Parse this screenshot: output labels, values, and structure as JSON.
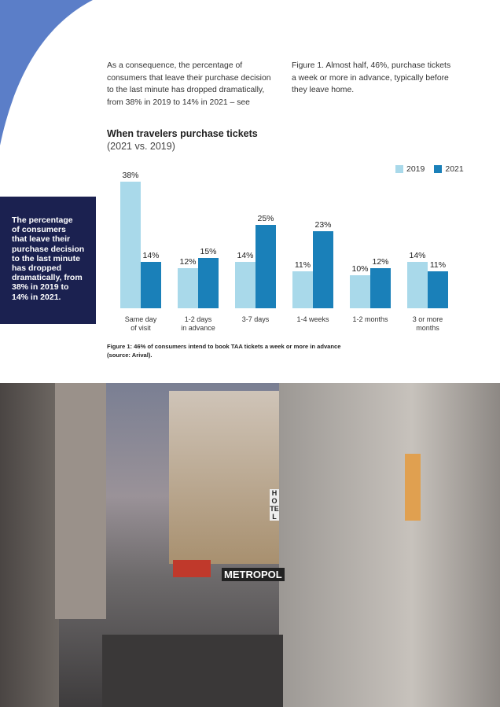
{
  "body": {
    "left_paragraph": "As a consequence, the percentage of\nconsumers that leave their purchase decision\nto  the last minute has dropped dramatically,\nfrom 38% in 2019 to 14% in 2021 – see",
    "right_paragraph": "Figure 1.  Almost half, 46%, purchase tickets\na week or more in advance, typically before\nthey leave home."
  },
  "callout": "The percentage\nof consumers\nthat leave their\npurchase decision\nto  the last minute\nhas dropped\ndramatically, from\n38% in 2019 to\n14% in 2021.",
  "chart_data": {
    "type": "bar",
    "title": "When travelers purchase tickets",
    "subtitle": "(2021 vs. 2019)",
    "categories": [
      "Same day\nof visit",
      "1-2 days\nin advance",
      "3-7 days",
      "1-4 weeks",
      "1-2 months",
      "3 or more\nmonths"
    ],
    "series": [
      {
        "name": "2019",
        "color": "#a9d9ea",
        "values": [
          38,
          12,
          14,
          11,
          10,
          14
        ],
        "value_labels": [
          "38%",
          "12%",
          "14%",
          "11%",
          "10%",
          "14%"
        ]
      },
      {
        "name": "2021",
        "color": "#1a80b9",
        "values": [
          14,
          15,
          25,
          23,
          12,
          11
        ],
        "value_labels": [
          "14%",
          "15%",
          "25%",
          "23%",
          "12%",
          "11%"
        ]
      }
    ],
    "legend": "top-right"
  },
  "caption": "Figure 1: 46% of consumers intend to book TAA tickets a week or more in advance\n(source: Arival).",
  "photo": {
    "signs": [
      "HOTEL",
      "METROPOL"
    ]
  }
}
